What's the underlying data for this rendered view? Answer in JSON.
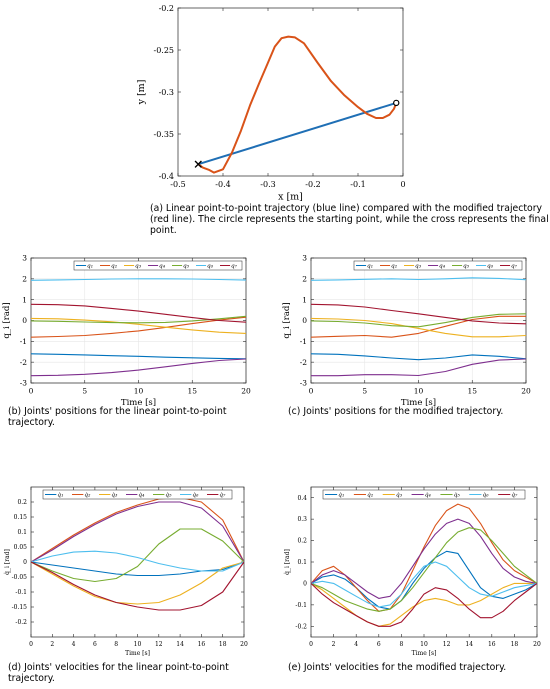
{
  "figure": {
    "captions": {
      "a": "(a)  Linear point-to-point trajectory (blue line) compared with the modified trajectory (red line).  The circle represents the starting point, while the cross represents the final point.",
      "b": "(b)   Joints' positions for the linear point-to-point trajectory.",
      "c": "(c)  Joints' positions for the modified trajectory.",
      "d": "(d)   Joints' velocities for the linear point-to-point trajectory.",
      "e": "(e)  Joints' velocities for the modified trajectory."
    }
  },
  "chart_data": [
    {
      "id": "a",
      "type": "line",
      "xlabel": "x [m]",
      "ylabel": "y [m]",
      "xlim": [
        -0.5,
        0
      ],
      "ylim": [
        -0.4,
        -0.2
      ],
      "xticks": [
        -0.5,
        -0.4,
        -0.3,
        -0.2,
        -0.1,
        0
      ],
      "xtick_labels": [
        "-0.5",
        "-0.4",
        "-0.3",
        "-0.2",
        "-0.1",
        "0"
      ],
      "yticks": [
        -0.4,
        -0.35,
        -0.3,
        -0.25,
        -0.2
      ],
      "ytick_labels": [
        "-0.4",
        "-0.35",
        "-0.3",
        "-0.25",
        "-0.2"
      ],
      "grid": false,
      "series": [
        {
          "color": "#1f6fb5",
          "x": [
            -0.455,
            -0.015
          ],
          "y": [
            -0.386,
            -0.313
          ]
        },
        {
          "color": "#d95319",
          "x": [
            -0.015,
            -0.02,
            -0.03,
            -0.045,
            -0.06,
            -0.08,
            -0.1,
            -0.13,
            -0.16,
            -0.19,
            -0.22,
            -0.24,
            -0.255,
            -0.27,
            -0.285,
            -0.3,
            -0.32,
            -0.34,
            -0.36,
            -0.38,
            -0.4,
            -0.42,
            -0.43,
            -0.445,
            -0.455
          ],
          "y": [
            -0.313,
            -0.32,
            -0.327,
            -0.331,
            -0.331,
            -0.326,
            -0.318,
            -0.304,
            -0.287,
            -0.265,
            -0.242,
            -0.235,
            -0.234,
            -0.236,
            -0.246,
            -0.265,
            -0.29,
            -0.316,
            -0.346,
            -0.372,
            -0.392,
            -0.396,
            -0.393,
            -0.39,
            -0.386
          ]
        }
      ],
      "markers": [
        {
          "type": "circle",
          "x": -0.015,
          "y": -0.313
        },
        {
          "type": "cross",
          "x": -0.455,
          "y": -0.386
        }
      ]
    },
    {
      "id": "b",
      "type": "line",
      "xlabel": "Time [s]",
      "ylabel": "q_i [rad]",
      "xlim": [
        0,
        20
      ],
      "ylim": [
        -3,
        3
      ],
      "xticks": [
        0,
        5,
        10,
        15,
        20
      ],
      "yticks": [
        -3,
        -2,
        -1,
        0,
        1,
        2,
        3
      ],
      "grid": true,
      "legend_position": "top-right",
      "legend": [
        "q₁",
        "q₂",
        "q₃",
        "q₄",
        "q₅",
        "q₆",
        "q₇"
      ],
      "x": [
        0,
        2.5,
        5,
        7.5,
        10,
        12.5,
        15,
        17.5,
        20
      ],
      "series": [
        {
          "name": "q₁",
          "color": "#0072bd",
          "values": [
            -1.6,
            -1.62,
            -1.65,
            -1.69,
            -1.72,
            -1.76,
            -1.79,
            -1.82,
            -1.84
          ]
        },
        {
          "name": "q₂",
          "color": "#d95319",
          "values": [
            -0.8,
            -0.77,
            -0.72,
            -0.62,
            -0.5,
            -0.33,
            -0.15,
            0.02,
            0.16
          ]
        },
        {
          "name": "q₃",
          "color": "#edb120",
          "values": [
            0.1,
            0.08,
            0.02,
            -0.06,
            -0.18,
            -0.32,
            -0.45,
            -0.56,
            -0.62
          ]
        },
        {
          "name": "q₄",
          "color": "#7e2f8e",
          "values": [
            -2.65,
            -2.63,
            -2.58,
            -2.5,
            -2.38,
            -2.22,
            -2.06,
            -1.92,
            -1.85
          ]
        },
        {
          "name": "q₅",
          "color": "#77ac30",
          "values": [
            -0.02,
            -0.04,
            -0.07,
            -0.1,
            -0.11,
            -0.09,
            -0.02,
            0.08,
            0.2
          ]
        },
        {
          "name": "q₆",
          "color": "#4dbeee",
          "values": [
            1.93,
            1.95,
            1.97,
            1.99,
            2.0,
            2.0,
            1.99,
            1.97,
            1.94
          ]
        },
        {
          "name": "q₇",
          "color": "#a2142f",
          "values": [
            0.78,
            0.76,
            0.7,
            0.58,
            0.45,
            0.3,
            0.14,
            0.0,
            -0.08
          ]
        }
      ]
    },
    {
      "id": "c",
      "type": "line",
      "xlabel": "Time [s]",
      "ylabel": "q_i [rad]",
      "xlim": [
        0,
        20
      ],
      "ylim": [
        -3,
        3
      ],
      "xticks": [
        0,
        5,
        10,
        15,
        20
      ],
      "yticks": [
        -3,
        -2,
        -1,
        0,
        1,
        2,
        3
      ],
      "grid": true,
      "legend_position": "top-right",
      "legend": [
        "q₁",
        "q₂",
        "q₃",
        "q₄",
        "q₅",
        "q₆",
        "q₇"
      ],
      "x": [
        0,
        2.5,
        5,
        7.5,
        10,
        12.5,
        15,
        17.5,
        20
      ],
      "series": [
        {
          "name": "q₁",
          "color": "#0072bd",
          "values": [
            -1.6,
            -1.62,
            -1.7,
            -1.8,
            -1.88,
            -1.8,
            -1.65,
            -1.72,
            -1.84
          ]
        },
        {
          "name": "q₂",
          "color": "#d95319",
          "values": [
            -0.8,
            -0.76,
            -0.72,
            -0.8,
            -0.62,
            -0.28,
            0.05,
            0.2,
            0.2
          ]
        },
        {
          "name": "q₃",
          "color": "#edb120",
          "values": [
            0.1,
            0.07,
            0.0,
            -0.15,
            -0.38,
            -0.62,
            -0.78,
            -0.78,
            -0.72
          ]
        },
        {
          "name": "q₄",
          "color": "#7e2f8e",
          "values": [
            -2.65,
            -2.65,
            -2.6,
            -2.6,
            -2.64,
            -2.45,
            -2.1,
            -1.9,
            -1.85
          ]
        },
        {
          "name": "q₅",
          "color": "#77ac30",
          "values": [
            -0.02,
            -0.05,
            -0.12,
            -0.25,
            -0.3,
            -0.1,
            0.15,
            0.3,
            0.32
          ]
        },
        {
          "name": "q₆",
          "color": "#4dbeee",
          "values": [
            1.93,
            1.95,
            1.98,
            2.0,
            1.97,
            2.0,
            2.05,
            2.02,
            1.96
          ]
        },
        {
          "name": "q₇",
          "color": "#a2142f",
          "values": [
            0.78,
            0.75,
            0.65,
            0.48,
            0.32,
            0.15,
            -0.02,
            -0.12,
            -0.16
          ]
        }
      ]
    },
    {
      "id": "d",
      "type": "line",
      "xlabel": "Time [s]",
      "ylabel": "q̇_i [rad]",
      "xlim": [
        0,
        20
      ],
      "ylim": [
        -0.25,
        0.25
      ],
      "xticks": [
        0,
        2,
        4,
        6,
        8,
        10,
        12,
        14,
        16,
        18,
        20
      ],
      "yticks": [
        -0.2,
        -0.15,
        -0.1,
        -0.05,
        0,
        0.05,
        0.1,
        0.15,
        0.2
      ],
      "ytick_labels": [
        "-0.2",
        "-0.15",
        "-0.1",
        "-0.05",
        "0",
        "0.05",
        "0.1",
        "0.15",
        "0.2"
      ],
      "grid": false,
      "legend_position": "top",
      "legend": [
        "q̇₁",
        "q̇₂",
        "q̇₃",
        "q̇₄",
        "q̇₅",
        "q̇₆",
        "q̇₇"
      ],
      "x": [
        0,
        2,
        4,
        6,
        8,
        10,
        12,
        14,
        16,
        18,
        20
      ],
      "series": [
        {
          "name": "q̇₁",
          "color": "#0072bd",
          "values": [
            0,
            -0.01,
            -0.02,
            -0.03,
            -0.04,
            -0.045,
            -0.045,
            -0.04,
            -0.03,
            -0.025,
            0
          ]
        },
        {
          "name": "q̇₂",
          "color": "#d95319",
          "values": [
            0,
            0.045,
            0.09,
            0.13,
            0.165,
            0.19,
            0.21,
            0.215,
            0.2,
            0.14,
            0
          ]
        },
        {
          "name": "q̇₃",
          "color": "#edb120",
          "values": [
            0,
            -0.04,
            -0.08,
            -0.115,
            -0.135,
            -0.14,
            -0.135,
            -0.11,
            -0.07,
            -0.02,
            0
          ]
        },
        {
          "name": "q̇₄",
          "color": "#7e2f8e",
          "values": [
            0,
            0.04,
            0.085,
            0.125,
            0.16,
            0.185,
            0.2,
            0.2,
            0.18,
            0.12,
            0
          ]
        },
        {
          "name": "q̇₅",
          "color": "#77ac30",
          "values": [
            0,
            -0.03,
            -0.055,
            -0.065,
            -0.055,
            -0.015,
            0.06,
            0.11,
            0.11,
            0.07,
            0
          ]
        },
        {
          "name": "q̇₆",
          "color": "#4dbeee",
          "values": [
            0,
            0.02,
            0.033,
            0.036,
            0.03,
            0.015,
            -0.005,
            -0.02,
            -0.03,
            -0.03,
            0
          ]
        },
        {
          "name": "q̇₇",
          "color": "#a2142f",
          "values": [
            0,
            -0.035,
            -0.075,
            -0.11,
            -0.135,
            -0.15,
            -0.16,
            -0.16,
            -0.145,
            -0.1,
            0
          ]
        }
      ]
    },
    {
      "id": "e",
      "type": "line",
      "xlabel": "Time [s]",
      "ylabel": "q̇_i [rad]",
      "xlim": [
        0,
        20
      ],
      "ylim": [
        -0.25,
        0.45
      ],
      "xticks": [
        0,
        2,
        4,
        6,
        8,
        10,
        12,
        14,
        16,
        18,
        20
      ],
      "yticks": [
        -0.2,
        -0.1,
        0,
        0.1,
        0.2,
        0.3,
        0.4
      ],
      "ytick_labels": [
        "-0.2",
        "-0.1",
        "0",
        "0.1",
        "0.2",
        "0.3",
        "0.4"
      ],
      "grid": false,
      "legend_position": "top",
      "legend": [
        "q̇₁",
        "q̇₂",
        "q̇₃",
        "q̇₄",
        "q̇₅",
        "q̇₆",
        "q̇₇"
      ],
      "x": [
        0,
        1,
        2,
        3,
        4,
        5,
        6,
        7,
        8,
        9,
        10,
        11,
        12,
        13,
        14,
        15,
        16,
        17,
        18,
        19,
        20
      ],
      "series": [
        {
          "name": "q̇₁",
          "color": "#0072bd",
          "values": [
            0,
            0.03,
            0.04,
            0.02,
            -0.02,
            -0.07,
            -0.11,
            -0.12,
            -0.08,
            0.0,
            0.07,
            0.12,
            0.15,
            0.14,
            0.06,
            -0.02,
            -0.06,
            -0.07,
            -0.05,
            -0.03,
            0
          ]
        },
        {
          "name": "q̇₂",
          "color": "#d95319",
          "values": [
            0,
            0.06,
            0.08,
            0.04,
            -0.02,
            -0.08,
            -0.13,
            -0.12,
            -0.05,
            0.06,
            0.17,
            0.27,
            0.34,
            0.37,
            0.35,
            0.28,
            0.19,
            0.11,
            0.06,
            0.03,
            0
          ]
        },
        {
          "name": "q̇₃",
          "color": "#edb120",
          "values": [
            0,
            -0.03,
            -0.07,
            -0.11,
            -0.15,
            -0.18,
            -0.2,
            -0.19,
            -0.15,
            -0.11,
            -0.08,
            -0.07,
            -0.08,
            -0.1,
            -0.1,
            -0.08,
            -0.05,
            -0.02,
            0.0,
            0.0,
            0
          ]
        },
        {
          "name": "q̇₄",
          "color": "#7e2f8e",
          "values": [
            0,
            0.04,
            0.06,
            0.04,
            0.0,
            -0.04,
            -0.07,
            -0.06,
            0.0,
            0.08,
            0.16,
            0.23,
            0.28,
            0.3,
            0.28,
            0.22,
            0.14,
            0.07,
            0.03,
            0.01,
            0
          ]
        },
        {
          "name": "q̇₅",
          "color": "#77ac30",
          "values": [
            0,
            -0.02,
            -0.05,
            -0.08,
            -0.1,
            -0.12,
            -0.13,
            -0.12,
            -0.08,
            -0.02,
            0.05,
            0.12,
            0.19,
            0.24,
            0.26,
            0.25,
            0.2,
            0.14,
            0.08,
            0.04,
            0
          ]
        },
        {
          "name": "q̇₆",
          "color": "#4dbeee",
          "values": [
            0,
            0.01,
            0.0,
            -0.03,
            -0.06,
            -0.09,
            -0.11,
            -0.1,
            -0.05,
            0.02,
            0.08,
            0.1,
            0.08,
            0.03,
            -0.02,
            -0.05,
            -0.06,
            -0.04,
            -0.02,
            -0.01,
            0
          ]
        },
        {
          "name": "q̇₇",
          "color": "#a2142f",
          "values": [
            0,
            -0.05,
            -0.09,
            -0.12,
            -0.15,
            -0.18,
            -0.2,
            -0.2,
            -0.18,
            -0.12,
            -0.05,
            -0.02,
            -0.03,
            -0.07,
            -0.12,
            -0.16,
            -0.16,
            -0.13,
            -0.08,
            -0.04,
            0
          ]
        }
      ]
    }
  ]
}
